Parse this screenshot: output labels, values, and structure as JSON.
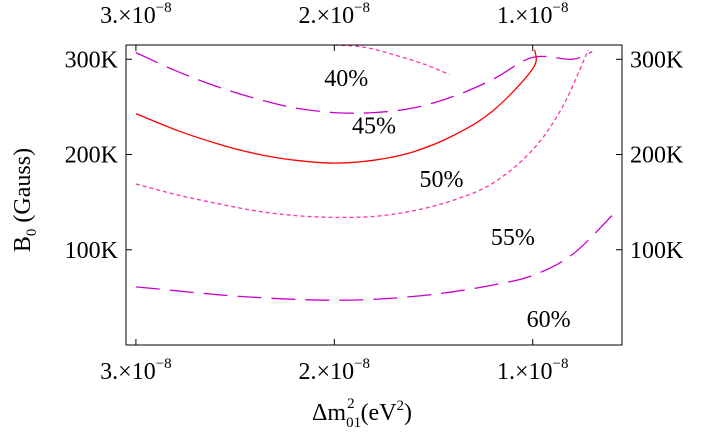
{
  "chart_data": {
    "type": "line",
    "title": "",
    "xlabel": {
      "prefix": "Δm",
      "sub": "01",
      "sup": "2",
      "unit": " (eV",
      "unit_sup": "2",
      "close": ")"
    },
    "ylabel": {
      "prefix": "B",
      "sub": "0",
      "rest": " (Gauss)"
    },
    "xlim": [
      3.05e-08,
      5.5e-09
    ],
    "ylim": [
      0,
      315000
    ],
    "x_axis_reversed": true,
    "grid": false,
    "legend": "none",
    "x_ticks": [
      {
        "value": 3e-08,
        "mantissa": "3.",
        "times": "×",
        "base": "10",
        "exponent": "−8"
      },
      {
        "value": 2e-08,
        "mantissa": "2.",
        "times": "×",
        "base": "10",
        "exponent": "−8"
      },
      {
        "value": 1e-08,
        "mantissa": "1.",
        "times": "×",
        "base": "10",
        "exponent": "−8"
      }
    ],
    "y_ticks": [
      {
        "value": 100000,
        "label": "100K"
      },
      {
        "value": 200000,
        "label": "200K"
      },
      {
        "value": 300000,
        "label": "300K"
      }
    ],
    "series": [
      {
        "name": "40%",
        "color": "#ff33aa",
        "style": "dotted",
        "x": [
          2e-08,
          1.86e-08,
          1.72e-08,
          1.55e-08,
          1.42e-08
        ],
        "y": [
          315000,
          313000,
          306000,
          295000,
          284000
        ]
      },
      {
        "name": "45%",
        "color": "#cc00cc",
        "style": "dashed",
        "x": [
          3e-08,
          2.8e-08,
          2.6e-08,
          2.4e-08,
          2.2e-08,
          2e-08,
          1.8e-08,
          1.6e-08,
          1.4e-08,
          1.2e-08,
          1e-08,
          8e-09,
          7e-09
        ],
        "y": [
          307000,
          288000,
          272000,
          259000,
          249000,
          244000,
          244000,
          249000,
          261000,
          279000,
          302000,
          300000,
          308000
        ]
      },
      {
        "name": "50%",
        "color": "#ff0000",
        "style": "solid",
        "x": [
          3e-08,
          2.8e-08,
          2.6e-08,
          2.4e-08,
          2.2e-08,
          2e-08,
          1.8e-08,
          1.6e-08,
          1.4e-08,
          1.2e-08,
          1e-08,
          9.9e-09
        ],
        "y": [
          243000,
          226000,
          212000,
          201000,
          194000,
          191000,
          194000,
          203000,
          220000,
          246000,
          290000,
          310000
        ]
      },
      {
        "name": "55%",
        "color": "#ff33aa",
        "style": "dotted",
        "x": [
          3e-08,
          2.8e-08,
          2.6e-08,
          2.4e-08,
          2.2e-08,
          2e-08,
          1.8e-08,
          1.6e-08,
          1.4e-08,
          1.2e-08,
          1e-08,
          8.5e-09,
          7.2e-09
        ],
        "y": [
          169000,
          158000,
          149000,
          141000,
          136000,
          134000,
          135000,
          141000,
          152000,
          170000,
          205000,
          250000,
          310000
        ]
      },
      {
        "name": "60%",
        "color": "#cc00cc",
        "style": "dashed",
        "x": [
          3e-08,
          2.8e-08,
          2.6e-08,
          2.4e-08,
          2.2e-08,
          2e-08,
          1.8e-08,
          1.6e-08,
          1.4e-08,
          1.2e-08,
          1e-08,
          8e-09,
          6e-09
        ],
        "y": [
          61000,
          57000,
          53000,
          50000,
          48000,
          47000,
          48000,
          51000,
          56000,
          63000,
          73000,
          95000,
          136000
        ]
      }
    ],
    "annotations": [
      {
        "text": "40%",
        "x": 1.94e-08,
        "y": 272000
      },
      {
        "text": "45%",
        "x": 1.8e-08,
        "y": 222000
      },
      {
        "text": "50%",
        "x": 1.46e-08,
        "y": 166000
      },
      {
        "text": "55%",
        "x": 1.1e-08,
        "y": 105000
      },
      {
        "text": "60%",
        "x": 9.2e-09,
        "y": 19000
      }
    ]
  }
}
